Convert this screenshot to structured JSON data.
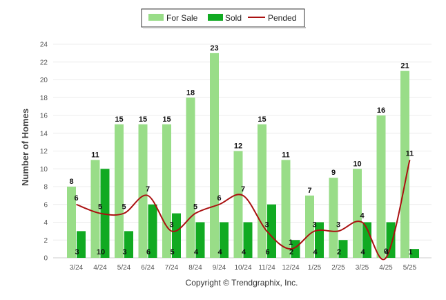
{
  "chart_data": {
    "type": "bar",
    "categories": [
      "3/24",
      "4/24",
      "5/24",
      "6/24",
      "7/24",
      "8/24",
      "9/24",
      "10/24",
      "11/24",
      "12/24",
      "1/25",
      "2/25",
      "3/25",
      "4/25",
      "5/25"
    ],
    "series": [
      {
        "name": "For Sale",
        "type": "bar",
        "color": "#99dd88",
        "values": [
          8,
          11,
          15,
          15,
          15,
          18,
          23,
          12,
          15,
          11,
          7,
          9,
          10,
          16,
          21
        ]
      },
      {
        "name": "Sold",
        "type": "bar",
        "color": "#11aa22",
        "values": [
          3,
          10,
          3,
          6,
          5,
          4,
          4,
          4,
          6,
          2,
          4,
          2,
          4,
          4,
          1
        ]
      },
      {
        "name": "Pended",
        "type": "line",
        "color": "#aa1111",
        "values": [
          6,
          5,
          5,
          7,
          3,
          5,
          6,
          7,
          3,
          1,
          3,
          3,
          4,
          0,
          11
        ]
      }
    ],
    "ylabel": "Number of Homes",
    "ylim": [
      0,
      24
    ],
    "yticks": [
      "0",
      "2",
      "4",
      "6",
      "8",
      "10",
      "12",
      "14",
      "16",
      "18",
      "20",
      "22",
      "24"
    ],
    "grid": true,
    "legend_position": "top-center"
  },
  "footer": {
    "copyright": "Copyright © Trendgraphix, Inc."
  }
}
